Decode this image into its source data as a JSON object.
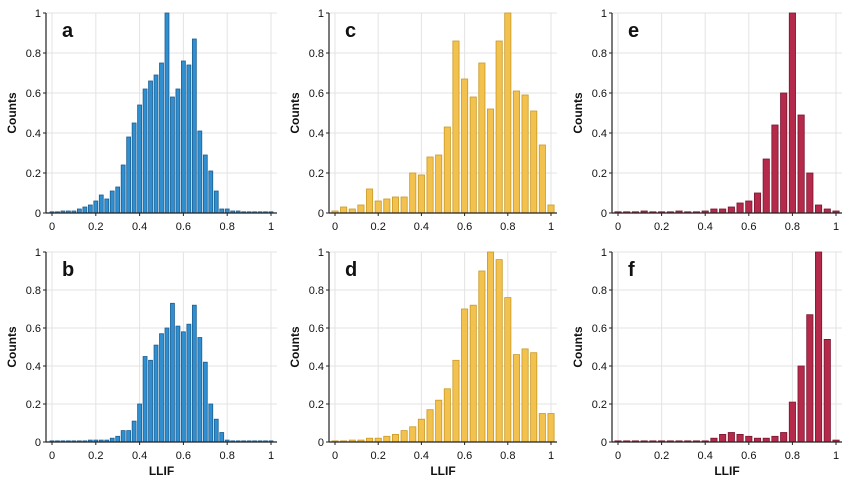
{
  "chart_data": [
    {
      "type": "bar",
      "panel_label": "a",
      "color": "#2f8fd0",
      "stroke": "#1c5f92",
      "xlabel": "",
      "ylabel": "Counts",
      "xlim": [
        0,
        1
      ],
      "ylim": [
        0,
        1
      ],
      "xticks": [
        0,
        0.2,
        0.4,
        0.6,
        0.8,
        1
      ],
      "yticks": [
        0,
        0.2,
        0.4,
        0.6,
        0.8,
        1
      ],
      "xtick_labels": [
        "0",
        "0.2",
        "0.4",
        "0.6",
        "0.8",
        "1"
      ],
      "ytick_labels": [
        "0",
        "0.2",
        "0.4",
        "0.6",
        "0.8",
        "1"
      ],
      "grid": true,
      "bin_centers": [
        0.0,
        0.025,
        0.05,
        0.075,
        0.1,
        0.125,
        0.15,
        0.175,
        0.2,
        0.225,
        0.25,
        0.275,
        0.3,
        0.325,
        0.35,
        0.375,
        0.4,
        0.425,
        0.45,
        0.475,
        0.5,
        0.525,
        0.55,
        0.575,
        0.6,
        0.625,
        0.65,
        0.675,
        0.7,
        0.725,
        0.75,
        0.775,
        0.8,
        0.825,
        0.85,
        0.875,
        0.9,
        0.925,
        0.95,
        0.975,
        1.0
      ],
      "values": [
        0.0,
        0.0,
        0.01,
        0.01,
        0.01,
        0.02,
        0.03,
        0.04,
        0.06,
        0.09,
        0.07,
        0.11,
        0.13,
        0.24,
        0.38,
        0.45,
        0.54,
        0.62,
        0.66,
        0.69,
        0.75,
        1.0,
        0.58,
        0.62,
        0.76,
        0.74,
        0.87,
        0.41,
        0.29,
        0.21,
        0.11,
        0.02,
        0.02,
        0.01,
        0.01,
        0.0,
        0.0,
        0.0,
        0.0,
        0.0,
        0.0
      ]
    },
    {
      "type": "bar",
      "panel_label": "c",
      "color": "#f2c14e",
      "stroke": "#c99a26",
      "xlabel": "",
      "ylabel": "Counts",
      "xlim": [
        0,
        1
      ],
      "ylim": [
        0,
        1
      ],
      "xticks": [
        0,
        0.2,
        0.4,
        0.6,
        0.8,
        1
      ],
      "yticks": [
        0,
        0.2,
        0.4,
        0.6,
        0.8,
        1
      ],
      "xtick_labels": [
        "0",
        "0.2",
        "0.4",
        "0.6",
        "0.8",
        "1"
      ],
      "ytick_labels": [
        "0",
        "0.2",
        "0.4",
        "0.6",
        "0.8",
        "1"
      ],
      "grid": true,
      "bin_centers": [
        0.0,
        0.04,
        0.08,
        0.12,
        0.16,
        0.2,
        0.24,
        0.28,
        0.32,
        0.36,
        0.4,
        0.44,
        0.48,
        0.52,
        0.56,
        0.6,
        0.64,
        0.68,
        0.72,
        0.76,
        0.8,
        0.84,
        0.88,
        0.92,
        0.96,
        1.0
      ],
      "values": [
        0.01,
        0.03,
        0.02,
        0.04,
        0.12,
        0.06,
        0.07,
        0.08,
        0.08,
        0.2,
        0.19,
        0.28,
        0.29,
        0.43,
        0.86,
        0.67,
        0.58,
        0.75,
        0.52,
        0.86,
        1.0,
        0.61,
        0.59,
        0.51,
        0.34,
        0.04
      ]
    },
    {
      "type": "bar",
      "panel_label": "e",
      "color": "#b52a4a",
      "stroke": "#7a1530",
      "xlabel": "",
      "ylabel": "Counts",
      "xlim": [
        0,
        1
      ],
      "ylim": [
        0,
        1
      ],
      "xticks": [
        0,
        0.2,
        0.4,
        0.6,
        0.8,
        1
      ],
      "yticks": [
        0,
        0.2,
        0.4,
        0.6,
        0.8,
        1
      ],
      "xtick_labels": [
        "0",
        "0.2",
        "0.4",
        "0.6",
        "0.8",
        "1"
      ],
      "ytick_labels": [
        "0",
        "0.2",
        "0.4",
        "0.6",
        "0.8",
        "1"
      ],
      "grid": true,
      "bin_centers": [
        0.0,
        0.04,
        0.08,
        0.12,
        0.16,
        0.2,
        0.24,
        0.28,
        0.32,
        0.36,
        0.4,
        0.44,
        0.48,
        0.52,
        0.56,
        0.6,
        0.64,
        0.68,
        0.72,
        0.76,
        0.8,
        0.84,
        0.88,
        0.92,
        0.96,
        1.0
      ],
      "values": [
        0.0,
        0.0,
        0.0,
        0.01,
        0.0,
        0.0,
        0.0,
        0.01,
        0.0,
        0.0,
        0.01,
        0.02,
        0.02,
        0.03,
        0.05,
        0.06,
        0.1,
        0.27,
        0.44,
        0.6,
        1.0,
        0.49,
        0.2,
        0.04,
        0.02,
        0.01
      ]
    },
    {
      "type": "bar",
      "panel_label": "b",
      "color": "#2f8fd0",
      "stroke": "#1c5f92",
      "xlabel": "LLIF",
      "ylabel": "Counts",
      "xlim": [
        0,
        1
      ],
      "ylim": [
        0,
        1
      ],
      "xticks": [
        0,
        0.2,
        0.4,
        0.6,
        0.8,
        1
      ],
      "yticks": [
        0,
        0.2,
        0.4,
        0.6,
        0.8,
        1
      ],
      "xtick_labels": [
        "0",
        "0.2",
        "0.4",
        "0.6",
        "0.8",
        "1"
      ],
      "ytick_labels": [
        "0",
        "0.2",
        "0.4",
        "0.6",
        "0.8",
        "1"
      ],
      "grid": true,
      "bin_centers": [
        0.0,
        0.025,
        0.05,
        0.075,
        0.1,
        0.125,
        0.15,
        0.175,
        0.2,
        0.225,
        0.25,
        0.275,
        0.3,
        0.325,
        0.35,
        0.375,
        0.4,
        0.425,
        0.45,
        0.475,
        0.5,
        0.525,
        0.55,
        0.575,
        0.6,
        0.625,
        0.65,
        0.675,
        0.7,
        0.725,
        0.75,
        0.775,
        0.8,
        0.825,
        0.85,
        0.875,
        0.9,
        0.925,
        0.95,
        0.975,
        1.0
      ],
      "values": [
        0.0,
        0.0,
        0.0,
        0.0,
        0.0,
        0.0,
        0.0,
        0.01,
        0.01,
        0.01,
        0.01,
        0.02,
        0.03,
        0.06,
        0.06,
        0.11,
        0.2,
        0.45,
        0.43,
        0.51,
        0.57,
        0.6,
        0.73,
        0.61,
        0.58,
        0.62,
        0.72,
        0.55,
        0.42,
        0.2,
        0.12,
        0.05,
        0.01,
        0.0,
        0.0,
        0.0,
        0.0,
        0.0,
        0.0,
        0.0,
        0.0
      ]
    },
    {
      "type": "bar",
      "panel_label": "d",
      "color": "#f2c14e",
      "stroke": "#c99a26",
      "xlabel": "LLIF",
      "ylabel": "Counts",
      "xlim": [
        0,
        1
      ],
      "ylim": [
        0,
        1
      ],
      "xticks": [
        0,
        0.2,
        0.4,
        0.6,
        0.8,
        1
      ],
      "yticks": [
        0,
        0.2,
        0.4,
        0.6,
        0.8,
        1
      ],
      "xtick_labels": [
        "0",
        "0.2",
        "0.4",
        "0.6",
        "0.8",
        "1"
      ],
      "ytick_labels": [
        "0",
        "0.2",
        "0.4",
        "0.6",
        "0.8",
        "1"
      ],
      "grid": true,
      "bin_centers": [
        0.0,
        0.04,
        0.08,
        0.12,
        0.16,
        0.2,
        0.24,
        0.28,
        0.32,
        0.36,
        0.4,
        0.44,
        0.48,
        0.52,
        0.56,
        0.6,
        0.64,
        0.68,
        0.72,
        0.76,
        0.8,
        0.84,
        0.88,
        0.92,
        0.96,
        1.0
      ],
      "values": [
        0.0,
        0.0,
        0.01,
        0.01,
        0.02,
        0.02,
        0.03,
        0.04,
        0.06,
        0.08,
        0.12,
        0.17,
        0.22,
        0.28,
        0.43,
        0.7,
        0.72,
        0.9,
        1.0,
        0.96,
        0.76,
        0.46,
        0.49,
        0.47,
        0.15,
        0.15
      ]
    },
    {
      "type": "bar",
      "panel_label": "f",
      "color": "#b52a4a",
      "stroke": "#7a1530",
      "xlabel": "LLIF",
      "ylabel": "Counts",
      "xlim": [
        0,
        1
      ],
      "ylim": [
        0,
        1
      ],
      "xticks": [
        0,
        0.2,
        0.4,
        0.6,
        0.8,
        1
      ],
      "yticks": [
        0,
        0.2,
        0.4,
        0.6,
        0.8,
        1
      ],
      "xtick_labels": [
        "0",
        "0.2",
        "0.4",
        "0.6",
        "0.8",
        "1"
      ],
      "ytick_labels": [
        "0",
        "0.2",
        "0.4",
        "0.6",
        "0.8",
        "1"
      ],
      "grid": true,
      "bin_centers": [
        0.0,
        0.04,
        0.08,
        0.12,
        0.16,
        0.2,
        0.24,
        0.28,
        0.32,
        0.36,
        0.4,
        0.44,
        0.48,
        0.52,
        0.56,
        0.6,
        0.64,
        0.68,
        0.72,
        0.76,
        0.8,
        0.84,
        0.88,
        0.92,
        0.96,
        1.0
      ],
      "values": [
        0.0,
        0.0,
        0.0,
        0.0,
        0.0,
        0.0,
        0.0,
        0.0,
        0.0,
        0.0,
        0.0,
        0.02,
        0.04,
        0.05,
        0.04,
        0.03,
        0.02,
        0.02,
        0.03,
        0.05,
        0.21,
        0.4,
        0.67,
        1.0,
        0.54,
        0.01
      ]
    }
  ]
}
